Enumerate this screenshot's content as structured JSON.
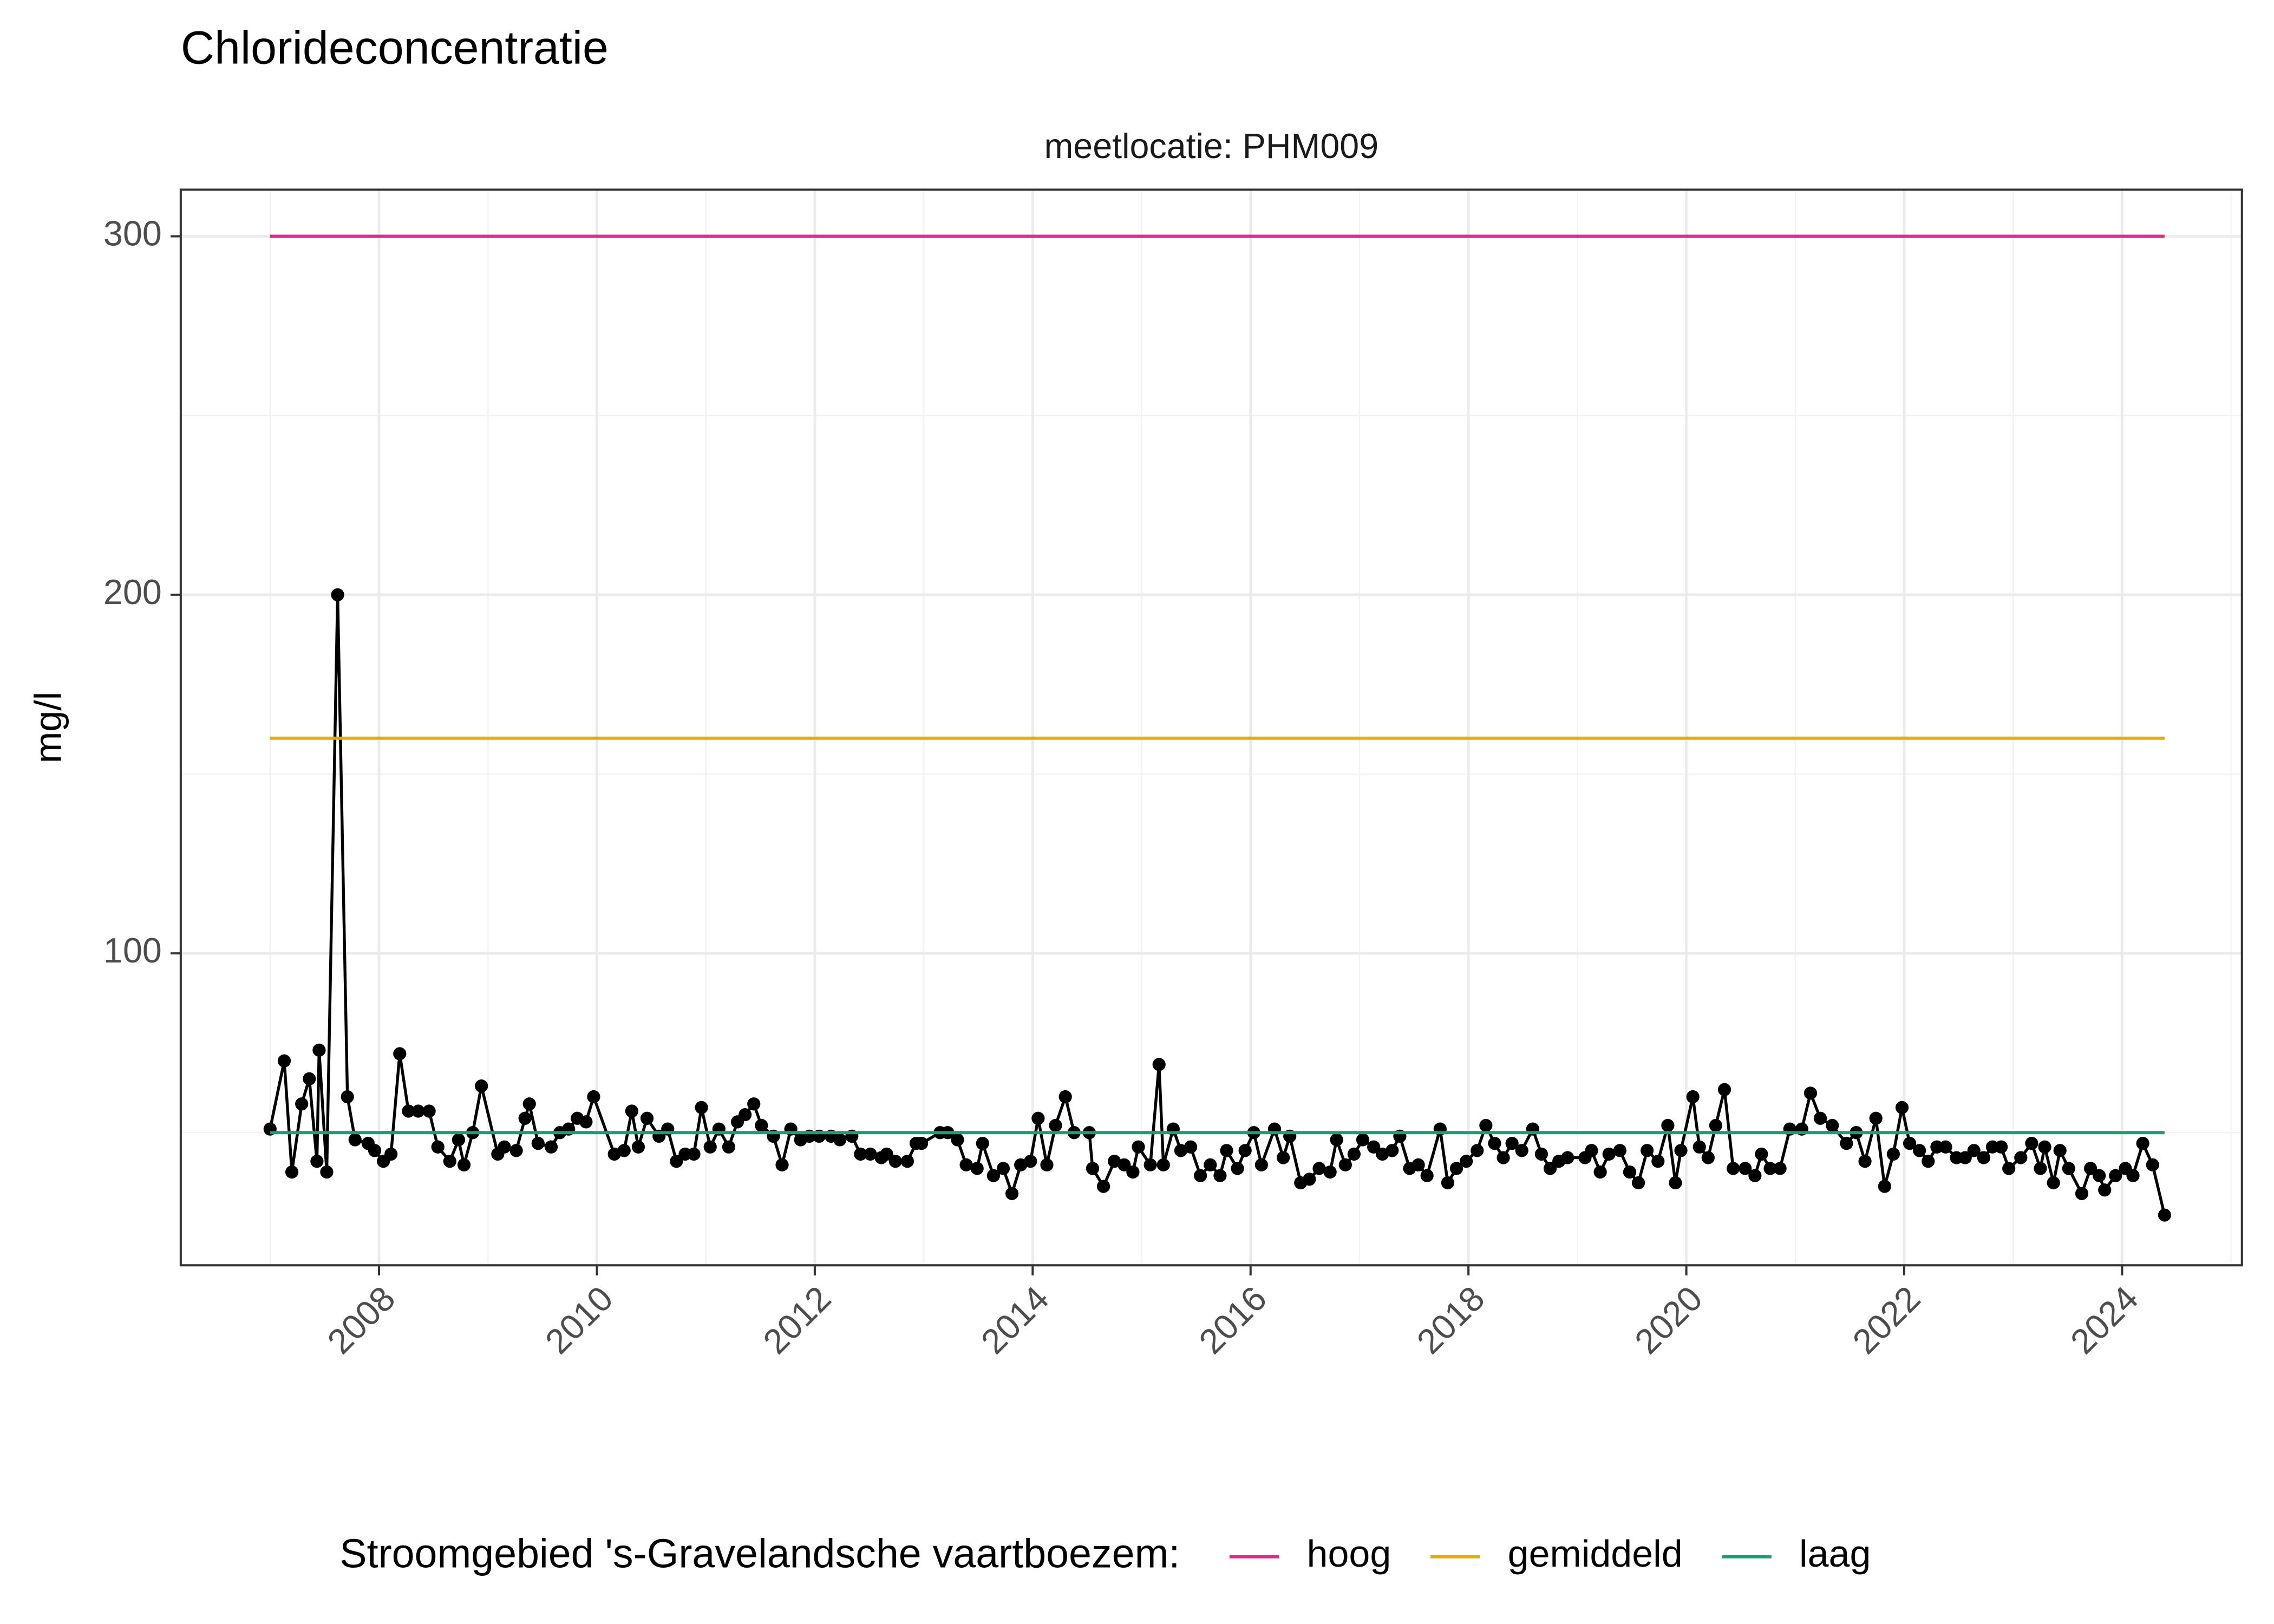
{
  "chart_data": {
    "type": "line",
    "title": "Chlorideconcentratie",
    "subtitle": "meetlocatie: PHM009",
    "y_label": "mg/l",
    "legend_title": "Stroomgebied 's-Gravelandsche vaartboezem:",
    "legend_position": "bottom",
    "grid": true,
    "xlim": [
      2006.18,
      2025.1
    ],
    "xticks": [
      2008,
      2010,
      2012,
      2014,
      2016,
      2018,
      2020,
      2022,
      2024
    ],
    "ylim": [
      13,
      313
    ],
    "yticks": [
      100,
      200,
      300
    ],
    "series": [
      {
        "color": "#000000",
        "markers": true,
        "x": [
          2007.0,
          2007.13,
          2007.2,
          2007.29,
          2007.36,
          2007.43,
          2007.45,
          2007.52,
          2007.62,
          2007.71,
          2007.78,
          2007.9,
          2007.96,
          2008.04,
          2008.11,
          2008.19,
          2008.27,
          2008.36,
          2008.46,
          2008.54,
          2008.65,
          2008.73,
          2008.78,
          2008.86,
          2008.94,
          2009.09,
          2009.15,
          2009.26,
          2009.34,
          2009.38,
          2009.46,
          2009.58,
          2009.66,
          2009.74,
          2009.82,
          2009.9,
          2009.97,
          2010.16,
          2010.25,
          2010.32,
          2010.38,
          2010.46,
          2010.57,
          2010.65,
          2010.73,
          2010.81,
          2010.89,
          2010.96,
          2011.04,
          2011.12,
          2011.21,
          2011.29,
          2011.36,
          2011.44,
          2011.51,
          2011.62,
          2011.7,
          2011.78,
          2011.87,
          2011.95,
          2012.04,
          2012.15,
          2012.23,
          2012.34,
          2012.42,
          2012.51,
          2012.61,
          2012.66,
          2012.74,
          2012.85,
          2012.93,
          2012.98,
          2013.15,
          2013.22,
          2013.31,
          2013.39,
          2013.49,
          2013.54,
          2013.64,
          2013.73,
          2013.81,
          2013.89,
          2013.98,
          2014.05,
          2014.13,
          2014.21,
          2014.3,
          2014.38,
          2014.52,
          2014.55,
          2014.65,
          2014.75,
          2014.84,
          2014.92,
          2014.97,
          2015.08,
          2015.16,
          2015.2,
          2015.29,
          2015.36,
          2015.45,
          2015.54,
          2015.63,
          2015.72,
          2015.78,
          2015.88,
          2015.95,
          2016.03,
          2016.1,
          2016.22,
          2016.3,
          2016.36,
          2016.46,
          2016.54,
          2016.63,
          2016.73,
          2016.79,
          2016.87,
          2016.95,
          2017.03,
          2017.13,
          2017.21,
          2017.3,
          2017.37,
          2017.46,
          2017.54,
          2017.62,
          2017.74,
          2017.81,
          2017.89,
          2017.98,
          2018.08,
          2018.16,
          2018.24,
          2018.32,
          2018.4,
          2018.49,
          2018.59,
          2018.67,
          2018.75,
          2018.83,
          2018.91,
          2019.07,
          2019.13,
          2019.21,
          2019.29,
          2019.39,
          2019.48,
          2019.56,
          2019.64,
          2019.74,
          2019.83,
          2019.9,
          2019.95,
          2020.06,
          2020.12,
          2020.2,
          2020.27,
          2020.35,
          2020.43,
          2020.54,
          2020.63,
          2020.69,
          2020.77,
          2020.86,
          2020.95,
          2021.06,
          2021.14,
          2021.23,
          2021.34,
          2021.47,
          2021.56,
          2021.64,
          2021.74,
          2021.82,
          2021.9,
          2021.98,
          2022.05,
          2022.14,
          2022.22,
          2022.3,
          2022.38,
          2022.48,
          2022.56,
          2022.64,
          2022.73,
          2022.81,
          2022.89,
          2022.96,
          2023.07,
          2023.17,
          2023.25,
          2023.29,
          2023.37,
          2023.43,
          2023.51,
          2023.63,
          2023.71,
          2023.79,
          2023.84,
          2023.94,
          2024.03,
          2024.1,
          2024.19,
          2024.28,
          2024.39
        ],
        "values": [
          51,
          70,
          39,
          58,
          65,
          42,
          73,
          39,
          200,
          60,
          48,
          47,
          45,
          42,
          44,
          72,
          56,
          56,
          56,
          46,
          42,
          48,
          41,
          50,
          63,
          44,
          46,
          45,
          54,
          58,
          47,
          46,
          50,
          51,
          54,
          53,
          60,
          44,
          45,
          56,
          46,
          54,
          49,
          51,
          42,
          44,
          44,
          57,
          46,
          51,
          46,
          53,
          55,
          58,
          52,
          49,
          41,
          51,
          48,
          49,
          49,
          49,
          48,
          49,
          44,
          44,
          43,
          44,
          42,
          42,
          47,
          47,
          50,
          50,
          48,
          41,
          40,
          47,
          38,
          40,
          33,
          41,
          42,
          54,
          41,
          52,
          60,
          50,
          50,
          40,
          35,
          42,
          41,
          39,
          46,
          41,
          69,
          41,
          51,
          45,
          46,
          38,
          41,
          38,
          45,
          40,
          45,
          50,
          41,
          51,
          43,
          49,
          36,
          37,
          40,
          39,
          48,
          41,
          44,
          48,
          46,
          44,
          45,
          49,
          40,
          41,
          38,
          51,
          36,
          40,
          42,
          45,
          52,
          47,
          43,
          47,
          45,
          51,
          44,
          40,
          42,
          43,
          43,
          45,
          39,
          44,
          45,
          39,
          36,
          45,
          42,
          52,
          36,
          45,
          60,
          46,
          43,
          52,
          62,
          40,
          40,
          38,
          44,
          40,
          40,
          51,
          51,
          61,
          54,
          52,
          47,
          50,
          42,
          54,
          35,
          44,
          57,
          47,
          45,
          42,
          46,
          46,
          43,
          43,
          45,
          43,
          46,
          46,
          40,
          43,
          47,
          40,
          46,
          36,
          45,
          40,
          33,
          40,
          38,
          34,
          38,
          40,
          38,
          47,
          41,
          27
        ]
      },
      {
        "name": "hoog",
        "color": "#e7298a",
        "x": [
          2007.0,
          2024.39
        ],
        "values": [
          300,
          300
        ]
      },
      {
        "name": "gemiddeld",
        "color": "#e6ab02",
        "x": [
          2007.0,
          2024.39
        ],
        "values": [
          160,
          160
        ]
      },
      {
        "name": "laag",
        "color": "#1b9e77",
        "x": [
          2007.0,
          2024.39
        ],
        "values": [
          50,
          50
        ]
      }
    ]
  }
}
